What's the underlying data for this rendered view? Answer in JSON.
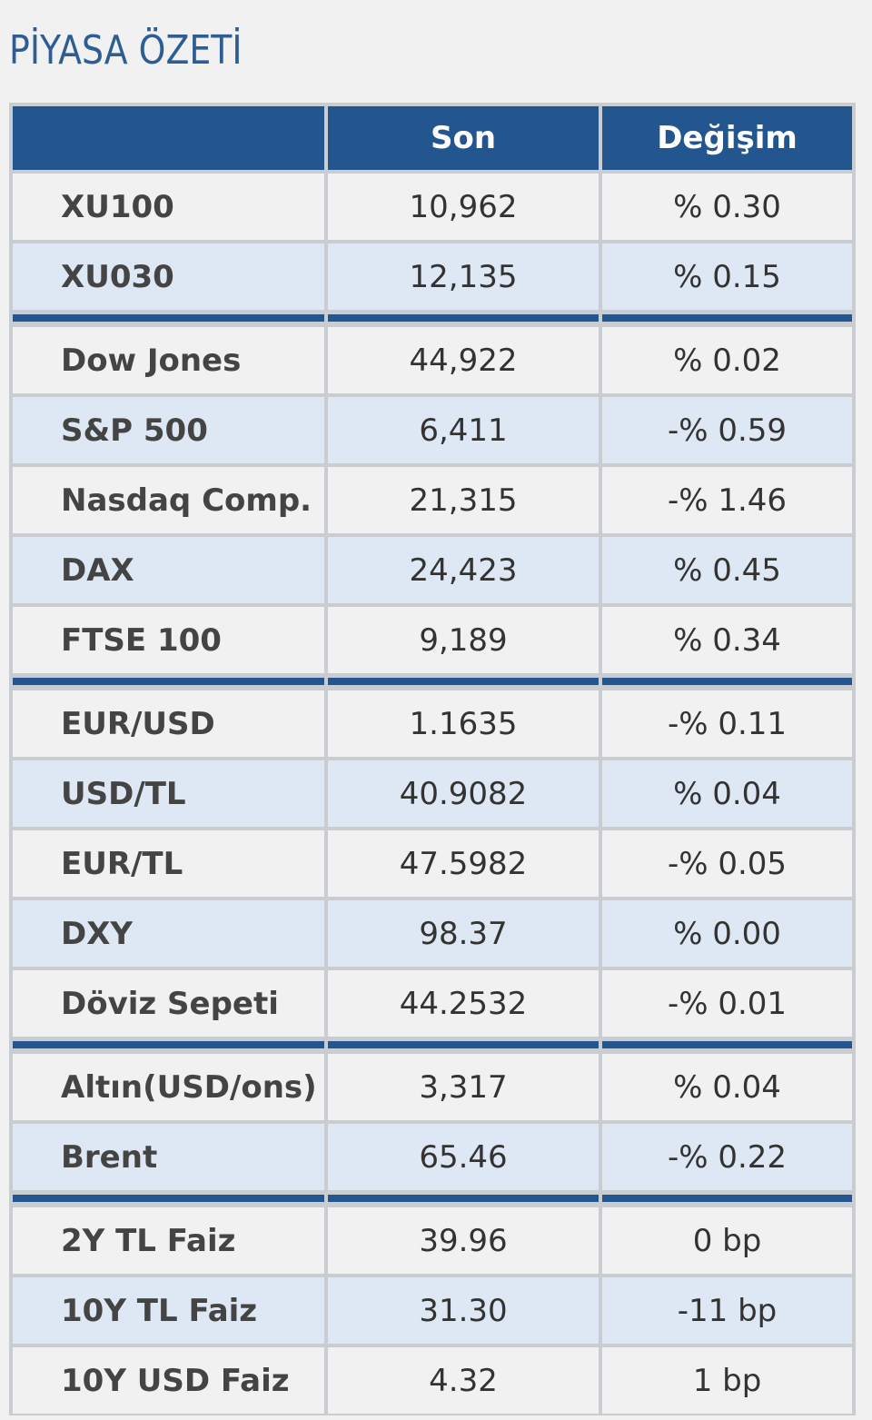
{
  "title": "PİYASA ÖZETİ",
  "headers": [
    "",
    "Son",
    "Değişim"
  ],
  "groups": [
    {
      "rows": [
        {
          "name": "XU100",
          "last": "10,962",
          "change": "% 0.30"
        },
        {
          "name": "XU030",
          "last": "12,135",
          "change": "% 0.15"
        }
      ]
    },
    {
      "rows": [
        {
          "name": "Dow Jones",
          "last": "44,922",
          "change": "% 0.02"
        },
        {
          "name": "S&P 500",
          "last": "6,411",
          "change": "-% 0.59"
        },
        {
          "name": "Nasdaq Comp.",
          "last": "21,315",
          "change": "-% 1.46"
        },
        {
          "name": "DAX",
          "last": "24,423",
          "change": "% 0.45"
        },
        {
          "name": "FTSE 100",
          "last": "9,189",
          "change": "% 0.34"
        }
      ]
    },
    {
      "rows": [
        {
          "name": "EUR/USD",
          "last": "1.1635",
          "change": "-% 0.11"
        },
        {
          "name": "USD/TL",
          "last": "40.9082",
          "change": "% 0.04"
        },
        {
          "name": "EUR/TL",
          "last": "47.5982",
          "change": "-% 0.05"
        },
        {
          "name": "DXY",
          "last": "98.37",
          "change": "% 0.00"
        },
        {
          "name": "Döviz Sepeti",
          "last": "44.2532",
          "change": "-% 0.01"
        }
      ]
    },
    {
      "rows": [
        {
          "name": "Altın(USD/ons)",
          "last": "3,317",
          "change": "% 0.04"
        },
        {
          "name": "Brent",
          "last": "65.46",
          "change": "-% 0.22"
        }
      ]
    },
    {
      "rows": [
        {
          "name": "2Y TL Faiz",
          "last": "39.96",
          "change": "0 bp"
        },
        {
          "name": "10Y TL Faiz",
          "last": "31.30",
          "change": "-11 bp"
        },
        {
          "name": "10Y USD Faiz",
          "last": "4.32",
          "change": "1 bp"
        }
      ]
    }
  ],
  "colors": {
    "title": "#2e5d94",
    "header_bg": "#23558e",
    "header_text": "#ffffff",
    "row_white": "#f1f1f1",
    "row_blue": "#dde8f4",
    "grid": "#c9cdd2"
  }
}
